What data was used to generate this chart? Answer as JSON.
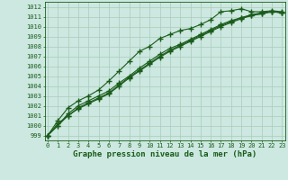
{
  "title": "Graphe pression niveau de la mer (hPa)",
  "hours": [
    0,
    1,
    2,
    3,
    4,
    5,
    6,
    7,
    8,
    9,
    10,
    11,
    12,
    13,
    14,
    15,
    16,
    17,
    18,
    19,
    20,
    21,
    22,
    23
  ],
  "ylim": [
    998.5,
    1012.5
  ],
  "xlim": [
    -0.3,
    23.3
  ],
  "yticks": [
    999,
    1000,
    1001,
    1002,
    1003,
    1004,
    1005,
    1006,
    1007,
    1008,
    1009,
    1010,
    1011,
    1012
  ],
  "bg_color": "#cce8e0",
  "line_color": "#1a5c1a",
  "grid_color": "#aaccbb",
  "lines": [
    [
      999.0,
      1000.5,
      1001.8,
      1002.5,
      1003.0,
      1003.6,
      1004.5,
      1005.5,
      1006.5,
      1007.5,
      1008.0,
      1008.8,
      1009.2,
      1009.6,
      1009.8,
      1010.2,
      1010.7,
      1011.5,
      1011.6,
      1011.8,
      1011.5,
      1011.5,
      1011.6,
      1011.5
    ],
    [
      999.0,
      1000.0,
      1001.2,
      1002.0,
      1002.5,
      1003.0,
      1003.5,
      1004.3,
      1005.0,
      1005.8,
      1006.5,
      1007.2,
      1007.8,
      1008.2,
      1008.7,
      1009.2,
      1009.7,
      1010.2,
      1010.6,
      1010.9,
      1011.2,
      1011.4,
      1011.5,
      1011.4
    ],
    [
      999.0,
      1000.2,
      1001.0,
      1001.7,
      1002.2,
      1002.7,
      1003.2,
      1004.0,
      1004.8,
      1005.5,
      1006.2,
      1006.9,
      1007.5,
      1008.0,
      1008.5,
      1009.0,
      1009.5,
      1010.0,
      1010.4,
      1010.8,
      1011.1,
      1011.3,
      1011.5,
      1011.4
    ],
    [
      999.0,
      1000.0,
      1001.0,
      1001.8,
      1002.3,
      1002.8,
      1003.3,
      1004.1,
      1004.9,
      1005.6,
      1006.3,
      1007.0,
      1007.6,
      1008.1,
      1008.6,
      1009.1,
      1009.6,
      1010.1,
      1010.5,
      1010.9,
      1011.1,
      1011.3,
      1011.5,
      1011.4
    ]
  ],
  "marker": "+",
  "marker_size": 4,
  "line_width": 0.8,
  "tick_fontsize": 5.0,
  "xlabel_fontsize": 6.5
}
